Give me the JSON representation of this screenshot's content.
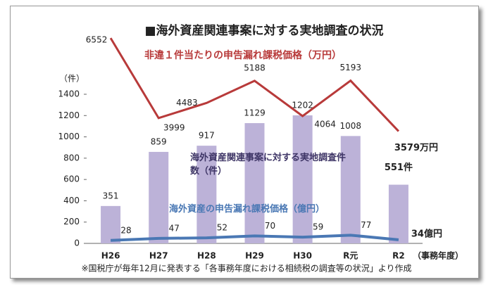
{
  "chart_data": {
    "type": "bar",
    "title": "■海外資産関連事案に対する実地調査の状況",
    "y_label": "（件）",
    "x_label": "（事務年度）",
    "footnote": "※国税庁が毎年12月に発表する「各事務年度における相続税の調査等の状況」より作成",
    "categories": [
      "H26",
      "H27",
      "H28",
      "H29",
      "H30",
      "R元",
      "R2"
    ],
    "ylim": [
      0,
      1400
    ],
    "yticks": [
      0,
      200,
      400,
      600,
      800,
      1000,
      1200,
      1400
    ],
    "y2lim": [
      0,
      6600
    ],
    "series": [
      {
        "name": "海外資産関連事案に対する実地調査件数（件）",
        "type": "bar",
        "color": "#bcb2d8",
        "values": [
          351,
          859,
          917,
          1129,
          1202,
          1008,
          551
        ],
        "value_labels": [
          null,
          null,
          null,
          null,
          null,
          null,
          "551件"
        ]
      },
      {
        "name": "非違１件当たりの申告漏れ課税価格（万円）",
        "type": "line",
        "axis": "y2",
        "color": "#b83a3a",
        "values": [
          6552,
          3999,
          4483,
          5188,
          4064,
          5193,
          3579
        ],
        "value_labels": [
          null,
          null,
          null,
          null,
          null,
          null,
          "3579万円"
        ]
      },
      {
        "name": "海外資産の申告漏れ課税価格（億円）",
        "type": "line",
        "color": "#4a78b4",
        "values": [
          28,
          47,
          52,
          70,
          59,
          77,
          34
        ],
        "value_labels": [
          null,
          null,
          null,
          null,
          null,
          null,
          "34億円"
        ]
      }
    ]
  }
}
